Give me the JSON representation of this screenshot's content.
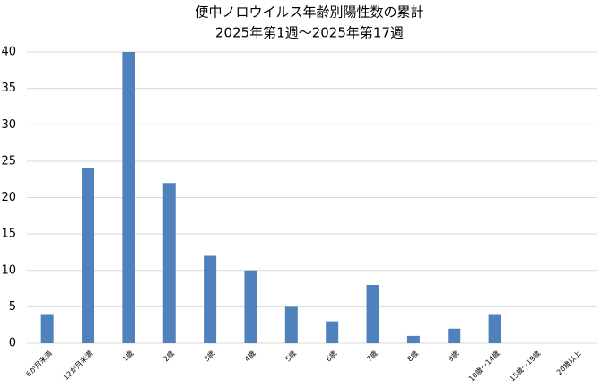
{
  "chart_data": {
    "type": "bar",
    "title": "便中ノロウイルス年齢別陽性数の累計",
    "subtitle": "2025年第1週～2025年第17週",
    "categories": [
      "6か月未満",
      "12か月未満",
      "1歳",
      "2歳",
      "3歳",
      "4歳",
      "5歳",
      "6歳",
      "7歳",
      "8歳",
      "9歳",
      "10歳～14歳",
      "15歳～19歳",
      "20歳以上"
    ],
    "values": [
      4,
      24,
      40,
      22,
      12,
      10,
      5,
      3,
      8,
      1,
      2,
      4,
      0,
      0
    ],
    "color": "#4f81bd",
    "ylim": [
      0,
      40
    ],
    "yticks": [
      0,
      5,
      10,
      15,
      20,
      25,
      30,
      35,
      40
    ],
    "grid": true
  }
}
